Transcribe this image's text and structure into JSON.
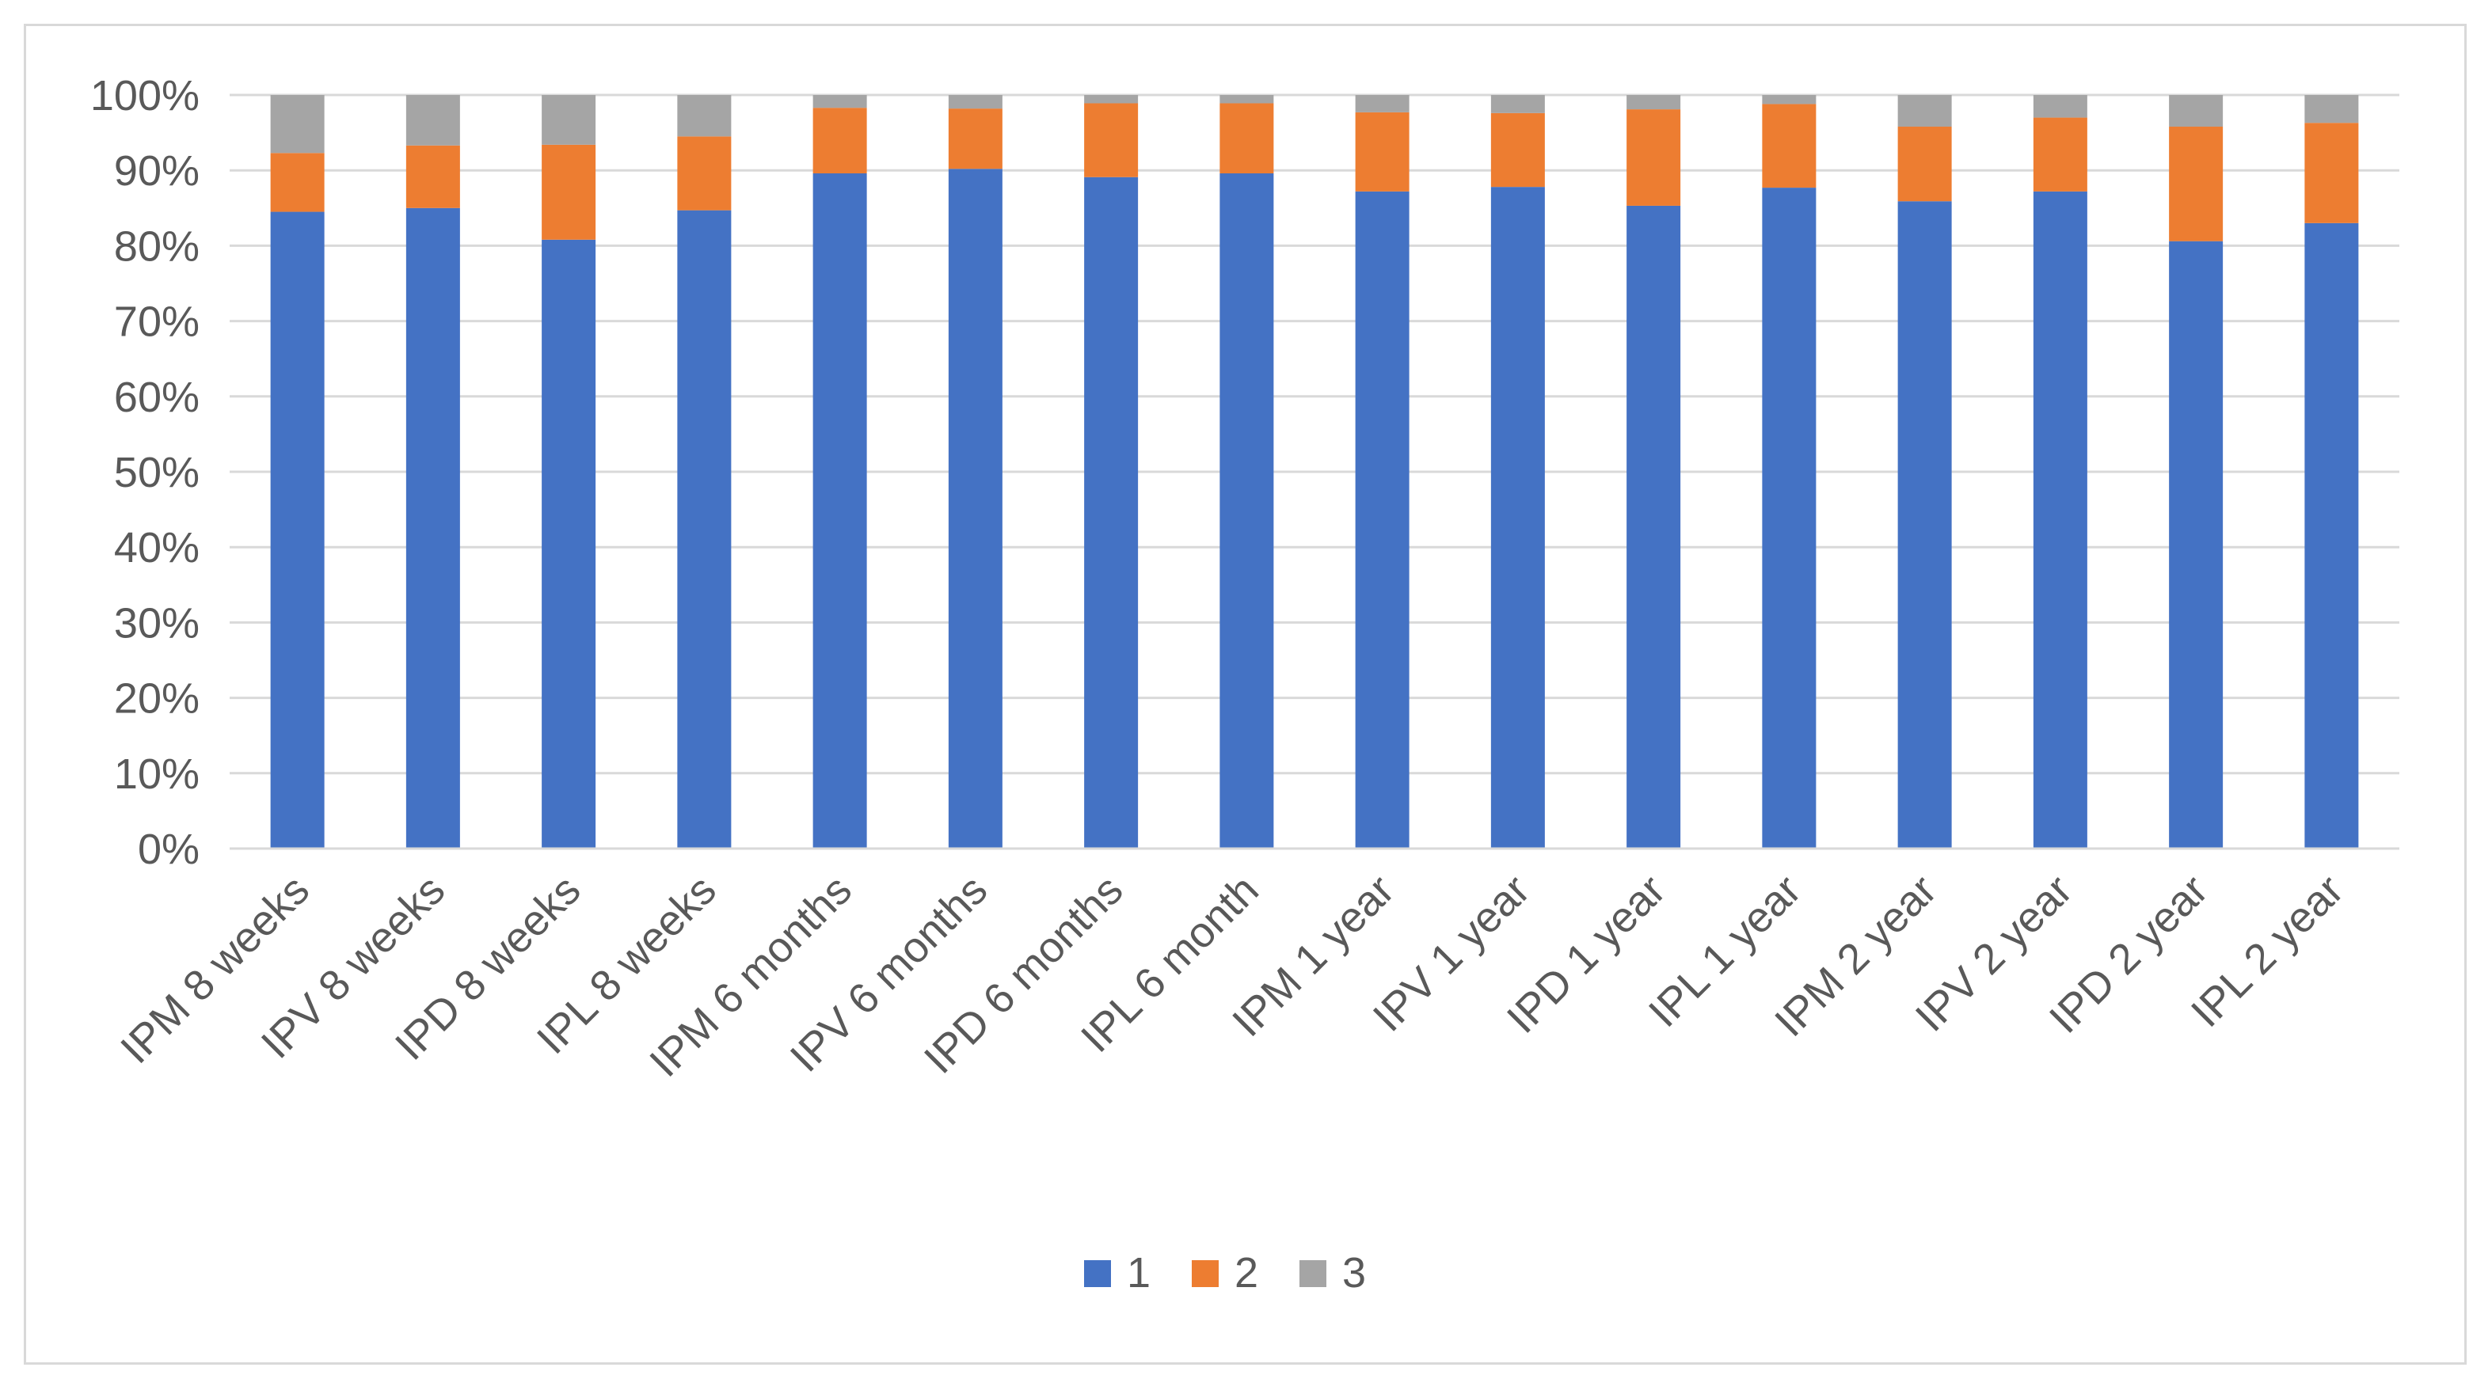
{
  "chart_data": {
    "type": "bar",
    "stacked": true,
    "percent_stacked": true,
    "categories": [
      "IPM 8 weeks",
      "IPV 8 weeks",
      "IPD 8 weeks",
      "IPL 8 weeks",
      "IPM 6 months",
      "IPV 6 months",
      "IPD 6 months",
      "IPL 6 month",
      "IPM 1 year",
      "IPV 1 year",
      "IPD 1 year",
      "IPL 1 year",
      "IPM 2 year",
      "IPV 2 year",
      "IPD 2 year",
      "IPL 2 year"
    ],
    "series": [
      {
        "name": "1",
        "color": "#4472c4",
        "values": [
          84.5,
          85.0,
          80.8,
          84.7,
          89.6,
          90.2,
          89.1,
          89.6,
          87.2,
          87.8,
          85.3,
          87.7,
          85.9,
          87.2,
          80.6,
          83.0
        ]
      },
      {
        "name": "2",
        "color": "#ed7d31",
        "values": [
          7.8,
          8.3,
          12.6,
          9.8,
          8.7,
          8.0,
          9.8,
          9.3,
          10.5,
          9.8,
          12.8,
          11.1,
          9.9,
          9.8,
          15.2,
          13.3
        ]
      },
      {
        "name": "3",
        "color": "#a5a5a5",
        "values": [
          7.7,
          6.7,
          6.6,
          5.5,
          1.7,
          1.8,
          1.1,
          1.1,
          2.3,
          2.4,
          1.9,
          1.2,
          4.2,
          3.0,
          4.2,
          3.7
        ]
      }
    ],
    "y_tick_labels": [
      "0%",
      "10%",
      "20%",
      "30%",
      "40%",
      "50%",
      "60%",
      "70%",
      "80%",
      "90%",
      "100%"
    ],
    "ylim": [
      0,
      100
    ],
    "grid": true,
    "legend_position": "bottom",
    "title": "",
    "xlabel": "",
    "ylabel": ""
  }
}
